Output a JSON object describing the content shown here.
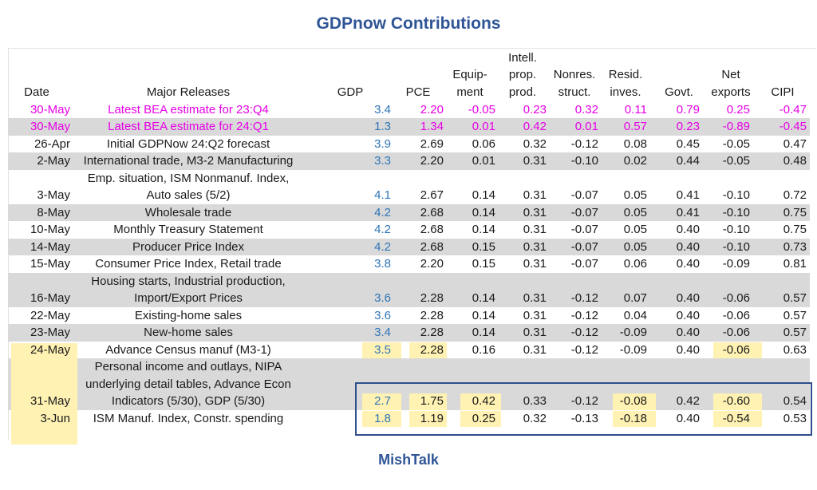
{
  "title": "GDPnow Contributions",
  "footer": "MishTalk",
  "colors": {
    "title": "#2f5597",
    "latest_bea": "#e600e6",
    "gdp_col": "#2e75b6",
    "shade": "#d9d9d9",
    "highlight": "#fff2b3",
    "box": "#2f4e8c"
  },
  "chart_data": {
    "type": "table",
    "title": "GDPnow Contributions",
    "headers": {
      "date": "Date",
      "releases": "Major Releases",
      "gdp": "GDP",
      "pce": "PCE",
      "equip": [
        "Equip-",
        "ment"
      ],
      "intell": [
        "Intell.",
        "prop.",
        "prod."
      ],
      "nonres": [
        "Nonres.",
        "struct."
      ],
      "resid": [
        "Resid.",
        "inves."
      ],
      "govt": "Govt.",
      "netx": [
        "Net",
        "exports"
      ],
      "cipi": "CIPI"
    },
    "rows": [
      {
        "date": "30-May",
        "release": [
          "Latest BEA estimate for 23:Q4"
        ],
        "gdp": "3.4",
        "pce": "2.20",
        "equip": "-0.05",
        "intell": "0.23",
        "nonres": "0.32",
        "resid": "0.11",
        "govt": "0.79",
        "netx": "0.25",
        "cipi": "-0.47"
      },
      {
        "date": "30-May",
        "release": [
          "Latest BEA estimate for 24:Q1"
        ],
        "gdp": "1.3",
        "pce": "1.34",
        "equip": "0.01",
        "intell": "0.42",
        "nonres": "0.01",
        "resid": "0.57",
        "govt": "0.23",
        "netx": "-0.89",
        "cipi": "-0.45"
      },
      {
        "date": "26-Apr",
        "release": [
          "Initial GDPNow 24:Q2 forecast"
        ],
        "gdp": "3.9",
        "pce": "2.69",
        "equip": "0.06",
        "intell": "0.32",
        "nonres": "-0.12",
        "resid": "0.08",
        "govt": "0.45",
        "netx": "-0.05",
        "cipi": "0.47"
      },
      {
        "date": "2-May",
        "release": [
          "International trade, M3-2 Manufacturing"
        ],
        "gdp": "3.3",
        "pce": "2.20",
        "equip": "0.01",
        "intell": "0.31",
        "nonres": "-0.10",
        "resid": "0.02",
        "govt": "0.44",
        "netx": "-0.05",
        "cipi": "0.48"
      },
      {
        "date": "3-May",
        "release": [
          "Emp. situation, ISM Nonmanuf. Index,",
          "Auto sales (5/2)"
        ],
        "gdp": "4.1",
        "pce": "2.67",
        "equip": "0.14",
        "intell": "0.31",
        "nonres": "-0.07",
        "resid": "0.05",
        "govt": "0.41",
        "netx": "-0.10",
        "cipi": "0.72"
      },
      {
        "date": "8-May",
        "release": [
          "Wholesale trade"
        ],
        "gdp": "4.2",
        "pce": "2.68",
        "equip": "0.14",
        "intell": "0.31",
        "nonres": "-0.07",
        "resid": "0.05",
        "govt": "0.41",
        "netx": "-0.10",
        "cipi": "0.75"
      },
      {
        "date": "10-May",
        "release": [
          "Monthly Treasury Statement"
        ],
        "gdp": "4.2",
        "pce": "2.68",
        "equip": "0.14",
        "intell": "0.31",
        "nonres": "-0.07",
        "resid": "0.05",
        "govt": "0.40",
        "netx": "-0.10",
        "cipi": "0.75"
      },
      {
        "date": "14-May",
        "release": [
          "Producer Price Index"
        ],
        "gdp": "4.2",
        "pce": "2.68",
        "equip": "0.15",
        "intell": "0.31",
        "nonres": "-0.07",
        "resid": "0.05",
        "govt": "0.40",
        "netx": "-0.10",
        "cipi": "0.73"
      },
      {
        "date": "15-May",
        "release": [
          "Consumer Price Index, Retail trade"
        ],
        "gdp": "3.8",
        "pce": "2.20",
        "equip": "0.15",
        "intell": "0.31",
        "nonres": "-0.07",
        "resid": "0.06",
        "govt": "0.40",
        "netx": "-0.09",
        "cipi": "0.81"
      },
      {
        "date": "16-May",
        "release": [
          "Housing starts, Industrial production,",
          "Import/Export Prices"
        ],
        "gdp": "3.6",
        "pce": "2.28",
        "equip": "0.14",
        "intell": "0.31",
        "nonres": "-0.12",
        "resid": "0.07",
        "govt": "0.40",
        "netx": "-0.06",
        "cipi": "0.57"
      },
      {
        "date": "22-May",
        "release": [
          "Existing-home sales"
        ],
        "gdp": "3.6",
        "pce": "2.28",
        "equip": "0.14",
        "intell": "0.31",
        "nonres": "-0.12",
        "resid": "0.04",
        "govt": "0.40",
        "netx": "-0.06",
        "cipi": "0.57"
      },
      {
        "date": "23-May",
        "release": [
          "New-home sales"
        ],
        "gdp": "3.4",
        "pce": "2.28",
        "equip": "0.14",
        "intell": "0.31",
        "nonres": "-0.12",
        "resid": "-0.09",
        "govt": "0.40",
        "netx": "-0.06",
        "cipi": "0.57"
      },
      {
        "date": "24-May",
        "release": [
          "Advance Census manuf (M3-1)"
        ],
        "gdp": "3.5",
        "pce": "2.28",
        "equip": "0.16",
        "intell": "0.31",
        "nonres": "-0.12",
        "resid": "-0.09",
        "govt": "0.40",
        "netx": "-0.06",
        "cipi": "0.63"
      },
      {
        "date": "31-May",
        "release": [
          "Personal income and outlays, NIPA",
          "underlying detail tables, Advance Econ",
          "Indicators (5/30), GDP (5/30)"
        ],
        "gdp": "2.7",
        "pce": "1.75",
        "equip": "0.42",
        "intell": "0.33",
        "nonres": "-0.12",
        "resid": "-0.08",
        "govt": "0.42",
        "netx": "-0.60",
        "cipi": "0.54"
      },
      {
        "date": "3-Jun",
        "release": [
          "ISM Manuf. Index, Constr. spending"
        ],
        "gdp": "1.8",
        "pce": "1.19",
        "equip": "0.25",
        "intell": "0.32",
        "nonres": "-0.13",
        "resid": "-0.18",
        "govt": "0.40",
        "netx": "-0.54",
        "cipi": "0.53"
      }
    ]
  }
}
